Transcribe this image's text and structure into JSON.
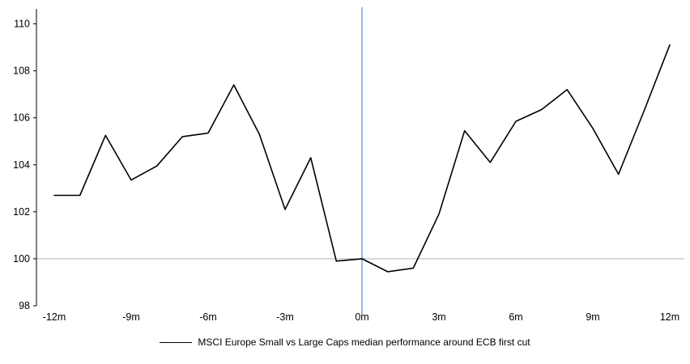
{
  "chart_data": {
    "type": "line",
    "title": "",
    "xlabel": "",
    "ylabel": "",
    "xlim": [
      -12,
      12
    ],
    "ylim": [
      98,
      110
    ],
    "grid": "off",
    "x": [
      -12,
      -11,
      -10,
      -9,
      -8,
      -7,
      -6,
      -5,
      -4,
      -3,
      -2,
      -1,
      0,
      1,
      2,
      3,
      4,
      5,
      6,
      7,
      8,
      9,
      10,
      11,
      12
    ],
    "series": [
      {
        "name": "MSCI Europe Small vs Large Caps median performance around ECB first cut",
        "color": "#000000",
        "values": [
          102.7,
          102.7,
          105.25,
          103.35,
          103.95,
          105.2,
          105.35,
          107.4,
          105.3,
          102.1,
          104.3,
          99.9,
          100.0,
          99.45,
          99.6,
          101.9,
          105.45,
          104.1,
          105.85,
          106.35,
          107.2,
          105.55,
          103.6,
          106.3,
          109.1
        ]
      }
    ],
    "y_ticks": [
      98,
      100,
      102,
      104,
      106,
      108,
      110
    ],
    "y_tick_labels": [
      "98",
      "100",
      "102",
      "104",
      "106",
      "108",
      "110"
    ],
    "x_tick_values": [
      -12,
      -9,
      -6,
      -3,
      0,
      3,
      6,
      9,
      12
    ],
    "x_tick_labels": [
      "-12m",
      "-9m",
      "-6m",
      "-3m",
      "0m",
      "3m",
      "6m",
      "9m",
      "12m"
    ],
    "reference_lines": {
      "horizontal_y": 100,
      "vertical_x": 0
    },
    "colors": {
      "series": "#000000",
      "vertical_line": "#6f9fd0",
      "horizontal_line": "#b3b3b3",
      "axis": "#000000",
      "tick_text": "#000000"
    },
    "legend": {
      "position": "bottom",
      "label": "MSCI Europe Small vs Large Caps median performance around ECB first cut"
    }
  }
}
